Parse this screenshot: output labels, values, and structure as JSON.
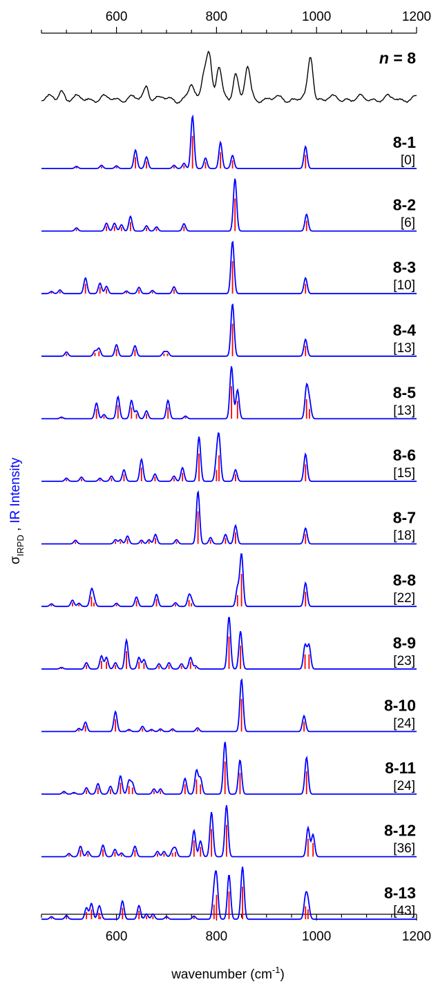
{
  "chart_data": {
    "type": "line",
    "x_axis": {
      "label_prefix": "wavenumber (cm",
      "label_superscript": "-1",
      "label_suffix": ")",
      "range": [
        450,
        1200
      ],
      "major_ticks": [
        600,
        800,
        1000,
        1200
      ],
      "tick_labels": [
        "600",
        "800",
        "1000",
        "1200"
      ],
      "minor_step": 50
    },
    "y_axis": {
      "label_sigma": "σ",
      "label_subscript": "IRPD",
      "label_separator": " ,",
      "label_ir": "IR Intensity",
      "sigma_color": "#000000",
      "ir_color": "#0000ff"
    },
    "colors": {
      "experiment": "#000000",
      "computed_envelope": "#0000ff",
      "stick_lines": "#ff0000"
    },
    "grid": false,
    "experiment": {
      "label_italic": "n",
      "label_rest": " = 8",
      "peaks": [
        [
          490,
          0.2
        ],
        [
          660,
          0.3
        ],
        [
          750,
          0.3
        ],
        [
          775,
          0.6
        ],
        [
          785,
          1.0
        ],
        [
          805,
          0.7
        ],
        [
          838,
          0.6
        ],
        [
          862,
          0.7
        ],
        [
          988,
          0.95
        ]
      ]
    },
    "computed_spectra": [
      {
        "name": "8-1",
        "energy": "[0]",
        "peaks": [
          [
            520,
            0.04
          ],
          [
            570,
            0.06
          ],
          [
            600,
            0.05
          ],
          [
            638,
            0.35
          ],
          [
            660,
            0.22
          ],
          [
            715,
            0.06
          ],
          [
            735,
            0.1
          ],
          [
            752,
            1.0
          ],
          [
            778,
            0.2
          ],
          [
            808,
            0.5
          ],
          [
            832,
            0.25
          ],
          [
            978,
            0.42
          ]
        ]
      },
      {
        "name": "8-2",
        "energy": "[6]",
        "peaks": [
          [
            520,
            0.06
          ],
          [
            580,
            0.15
          ],
          [
            596,
            0.15
          ],
          [
            610,
            0.12
          ],
          [
            628,
            0.28
          ],
          [
            660,
            0.1
          ],
          [
            680,
            0.08
          ],
          [
            735,
            0.14
          ],
          [
            837,
            1.0
          ],
          [
            980,
            0.32
          ]
        ]
      },
      {
        "name": "8-3",
        "energy": "[10]",
        "peaks": [
          [
            470,
            0.04
          ],
          [
            487,
            0.07
          ],
          [
            538,
            0.3
          ],
          [
            567,
            0.2
          ],
          [
            580,
            0.14
          ],
          [
            620,
            0.05
          ],
          [
            645,
            0.12
          ],
          [
            672,
            0.06
          ],
          [
            715,
            0.13
          ],
          [
            832,
            1.0
          ],
          [
            978,
            0.3
          ]
        ]
      },
      {
        "name": "8-4",
        "energy": "[13]",
        "peaks": [
          [
            500,
            0.08
          ],
          [
            557,
            0.1
          ],
          [
            565,
            0.15
          ],
          [
            600,
            0.22
          ],
          [
            637,
            0.2
          ],
          [
            695,
            0.08
          ],
          [
            702,
            0.08
          ],
          [
            832,
            1.0
          ],
          [
            978,
            0.32
          ]
        ]
      },
      {
        "name": "8-5",
        "energy": "[13]",
        "peaks": [
          [
            490,
            0.03
          ],
          [
            560,
            0.3
          ],
          [
            575,
            0.08
          ],
          [
            603,
            0.42
          ],
          [
            630,
            0.35
          ],
          [
            640,
            0.15
          ],
          [
            660,
            0.15
          ],
          [
            703,
            0.35
          ],
          [
            738,
            0.05
          ],
          [
            830,
            1.0
          ],
          [
            842,
            0.55
          ],
          [
            980,
            0.6
          ],
          [
            986,
            0.3
          ]
        ]
      },
      {
        "name": "8-6",
        "energy": "[15]",
        "peaks": [
          [
            500,
            0.06
          ],
          [
            530,
            0.08
          ],
          [
            567,
            0.06
          ],
          [
            590,
            0.1
          ],
          [
            615,
            0.22
          ],
          [
            650,
            0.42
          ],
          [
            677,
            0.14
          ],
          [
            715,
            0.1
          ],
          [
            732,
            0.26
          ],
          [
            765,
            0.85
          ],
          [
            800,
            0.35
          ],
          [
            805,
            0.8
          ],
          [
            838,
            0.22
          ],
          [
            978,
            0.52
          ]
        ]
      },
      {
        "name": "8-7",
        "energy": "[18]",
        "peaks": [
          [
            518,
            0.07
          ],
          [
            598,
            0.08
          ],
          [
            608,
            0.08
          ],
          [
            622,
            0.15
          ],
          [
            650,
            0.07
          ],
          [
            665,
            0.08
          ],
          [
            678,
            0.18
          ],
          [
            720,
            0.08
          ],
          [
            763,
            1.0
          ],
          [
            788,
            0.12
          ],
          [
            818,
            0.18
          ],
          [
            838,
            0.35
          ],
          [
            978,
            0.3
          ]
        ]
      },
      {
        "name": "8-8",
        "energy": "[22]",
        "peaks": [
          [
            470,
            0.05
          ],
          [
            512,
            0.12
          ],
          [
            525,
            0.06
          ],
          [
            550,
            0.3
          ],
          [
            555,
            0.12
          ],
          [
            600,
            0.06
          ],
          [
            640,
            0.18
          ],
          [
            680,
            0.23
          ],
          [
            718,
            0.07
          ],
          [
            745,
            0.2
          ],
          [
            750,
            0.1
          ],
          [
            842,
            0.35
          ],
          [
            850,
            1.0
          ],
          [
            978,
            0.45
          ]
        ]
      },
      {
        "name": "8-9",
        "energy": "[23]",
        "peaks": [
          [
            490,
            0.03
          ],
          [
            540,
            0.12
          ],
          [
            570,
            0.25
          ],
          [
            580,
            0.22
          ],
          [
            598,
            0.12
          ],
          [
            620,
            0.55
          ],
          [
            645,
            0.22
          ],
          [
            655,
            0.18
          ],
          [
            685,
            0.1
          ],
          [
            705,
            0.12
          ],
          [
            730,
            0.1
          ],
          [
            748,
            0.22
          ],
          [
            758,
            0.06
          ],
          [
            825,
            1.0
          ],
          [
            848,
            0.72
          ],
          [
            977,
            0.45
          ],
          [
            985,
            0.45
          ]
        ]
      },
      {
        "name": "8-10",
        "energy": "[24]",
        "peaks": [
          [
            525,
            0.06
          ],
          [
            538,
            0.18
          ],
          [
            598,
            0.38
          ],
          [
            625,
            0.04
          ],
          [
            652,
            0.1
          ],
          [
            670,
            0.04
          ],
          [
            688,
            0.05
          ],
          [
            712,
            0.05
          ],
          [
            762,
            0.07
          ],
          [
            850,
            1.0
          ],
          [
            975,
            0.3
          ]
        ]
      },
      {
        "name": "8-11",
        "energy": "[24]",
        "peaks": [
          [
            495,
            0.05
          ],
          [
            515,
            0.03
          ],
          [
            540,
            0.12
          ],
          [
            563,
            0.2
          ],
          [
            588,
            0.15
          ],
          [
            608,
            0.35
          ],
          [
            625,
            0.25
          ],
          [
            632,
            0.2
          ],
          [
            675,
            0.1
          ],
          [
            688,
            0.1
          ],
          [
            737,
            0.3
          ],
          [
            760,
            0.45
          ],
          [
            768,
            0.3
          ],
          [
            817,
            1.0
          ],
          [
            847,
            0.65
          ],
          [
            980,
            0.7
          ]
        ]
      },
      {
        "name": "8-12",
        "energy": "[36]",
        "peaks": [
          [
            505,
            0.06
          ],
          [
            528,
            0.2
          ],
          [
            543,
            0.1
          ],
          [
            573,
            0.22
          ],
          [
            597,
            0.14
          ],
          [
            610,
            0.07
          ],
          [
            637,
            0.2
          ],
          [
            682,
            0.1
          ],
          [
            695,
            0.1
          ],
          [
            712,
            0.12
          ],
          [
            718,
            0.15
          ],
          [
            755,
            0.5
          ],
          [
            768,
            0.3
          ],
          [
            790,
            0.85
          ],
          [
            820,
            0.98
          ],
          [
            983,
            0.55
          ],
          [
            993,
            0.42
          ]
        ]
      },
      {
        "name": "8-13",
        "energy": "[43]",
        "peaks": [
          [
            470,
            0.05
          ],
          [
            500,
            0.07
          ],
          [
            540,
            0.22
          ],
          [
            550,
            0.3
          ],
          [
            565,
            0.2
          ],
          [
            568,
            0.08
          ],
          [
            612,
            0.35
          ],
          [
            645,
            0.26
          ],
          [
            660,
            0.1
          ],
          [
            673,
            0.1
          ],
          [
            700,
            0.05
          ],
          [
            755,
            0.06
          ],
          [
            795,
            0.45
          ],
          [
            800,
            0.75
          ],
          [
            825,
            0.85
          ],
          [
            852,
            1.0
          ],
          [
            978,
            0.4
          ],
          [
            983,
            0.3
          ]
        ]
      }
    ]
  }
}
